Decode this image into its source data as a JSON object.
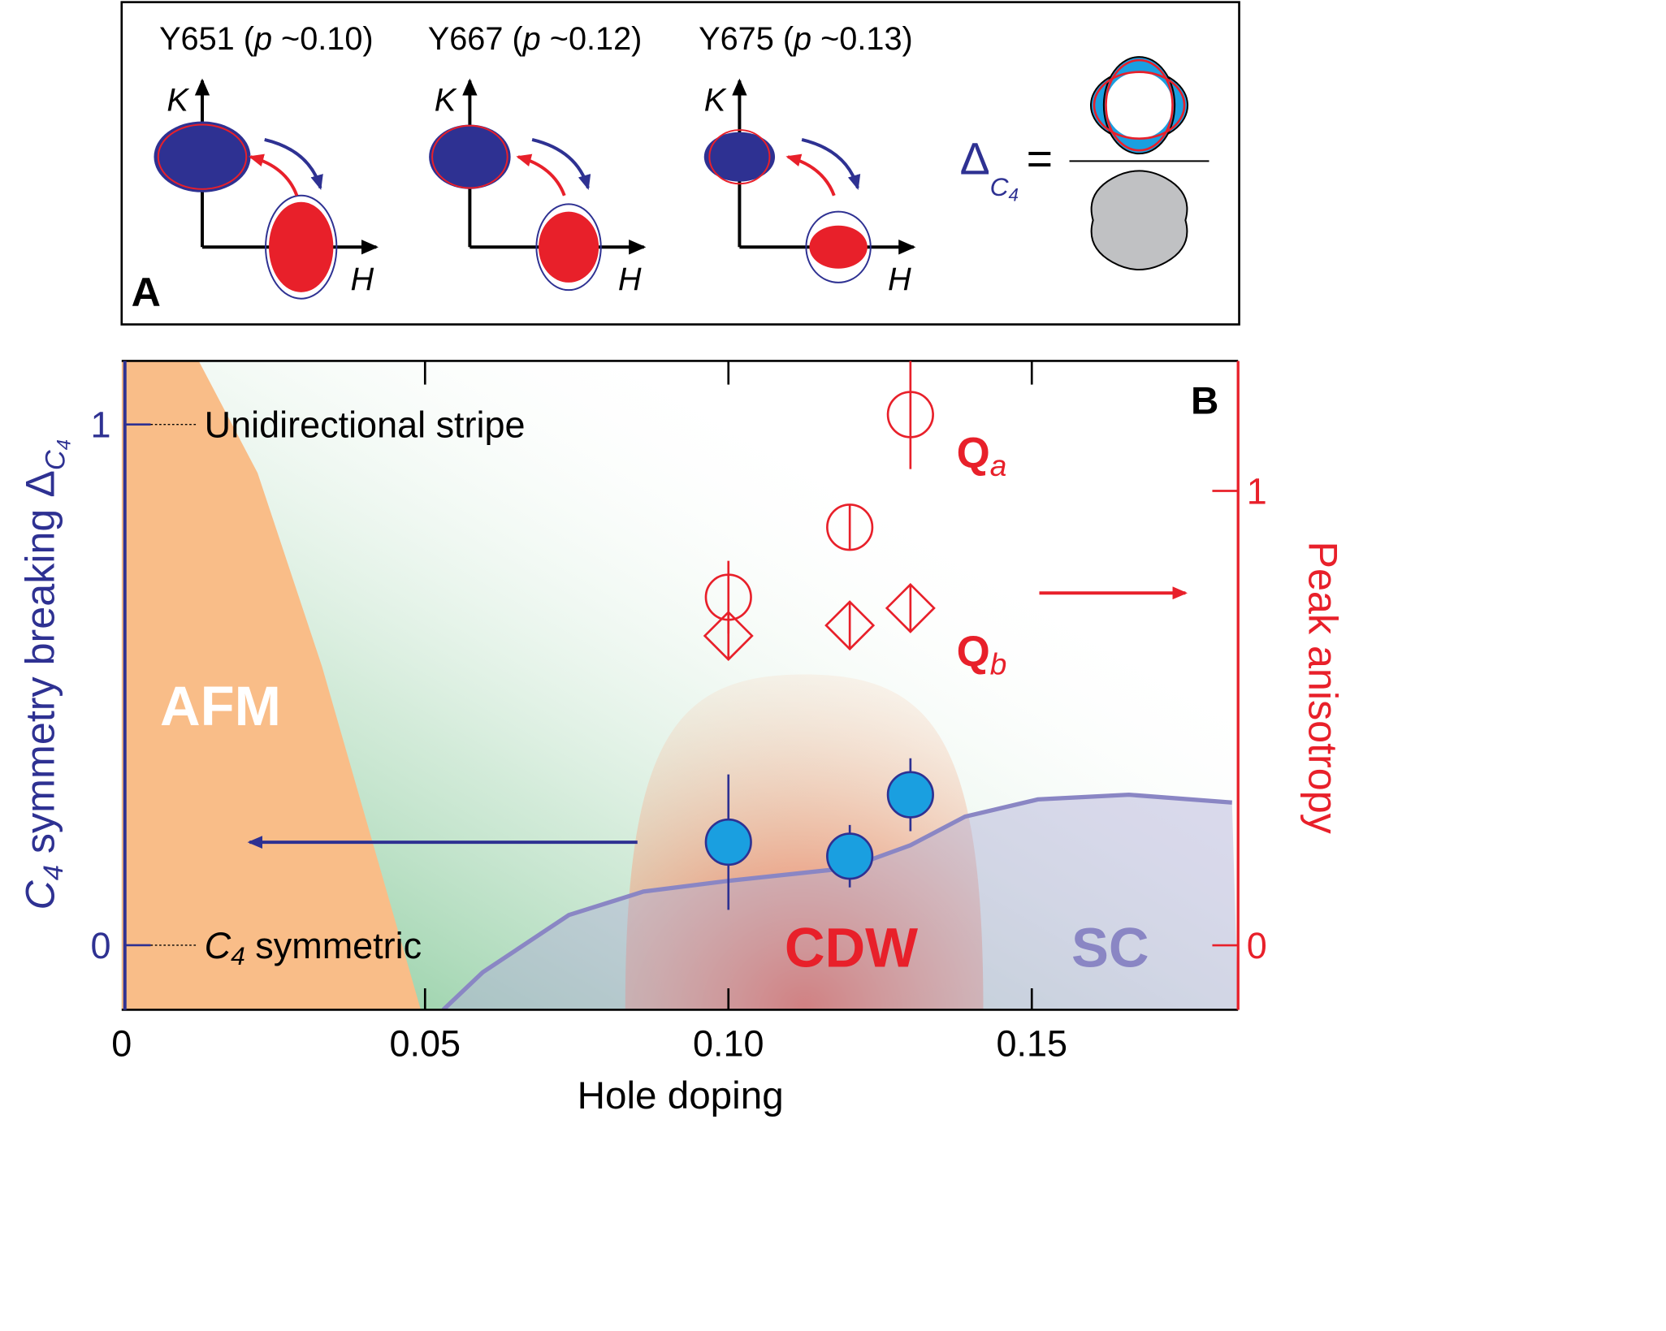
{
  "panel_a": {
    "label": "A",
    "samples": [
      {
        "title_parts": [
          "Y651 (",
          "p",
          " ~0.10)"
        ]
      },
      {
        "title_parts": [
          "Y667 (",
          "p",
          " ~0.12)"
        ]
      },
      {
        "title_parts": [
          "Y675 (",
          "p",
          " ~0.13)"
        ]
      }
    ],
    "k_label": "K",
    "h_label": "H",
    "formula": {
      "delta": "Δ",
      "sub_c": "C",
      "sub_4": "4",
      "equals": "="
    }
  },
  "chart_data": {
    "type": "scatter",
    "panel_label": "B",
    "xlabel": "Hole doping",
    "ylabel_parts": [
      "C",
      "4",
      " symmetry breaking Δ",
      "C",
      "4"
    ],
    "y2label": "Peak anisotropy",
    "xlim": [
      0,
      0.184
    ],
    "xticks": [
      0,
      0.05,
      {
        "value": 0.1,
        "label": "0.10"
      },
      0.15
    ],
    "ylim": [
      -0.124,
      1.122
    ],
    "yticks": [
      0,
      1
    ],
    "y2lim": [
      -0.142,
      1.286
    ],
    "y2ticks": [
      0,
      1
    ],
    "ytick_notes": [
      [
        "C",
        "4",
        " symmetric"
      ],
      [
        "Unidirectional stripe"
      ]
    ],
    "series": [
      {
        "color": "#1a9fe0",
        "marker": "circle",
        "x": [
          0.1,
          0.12,
          0.13
        ],
        "values": [
          0.198,
          0.171,
          0.289
        ],
        "errors": [
          0.13,
          0.06,
          0.07
        ]
      },
      {
        "axis": "y2",
        "color": "#e8202a",
        "marker": "open-circle",
        "label_parts": [
          "Q",
          "a"
        ],
        "x": [
          0.1,
          0.12,
          0.13
        ],
        "values": [
          0.766,
          0.92,
          1.168
        ],
        "errors": [
          0.08,
          0.05,
          0.12
        ]
      },
      {
        "axis": "y2",
        "color": "#e8202a",
        "marker": "open-diamond",
        "label_parts": [
          "Q",
          "b"
        ],
        "x": [
          0.1,
          0.12,
          0.13
        ],
        "values": [
          0.681,
          0.704,
          0.742
        ],
        "errors": [
          0.05,
          0.05,
          0.05
        ]
      }
    ],
    "regions": {
      "afm": {
        "label": "AFM",
        "color": "#f9bd88",
        "x": [
          0.0127,
          0.0224,
          0.033,
          0.0493
        ],
        "y": [
          1.122,
          0.907,
          0.536,
          -0.124
        ]
      },
      "cdw": {
        "label": "CDW",
        "color": "#e8202a",
        "xlim": [
          0.083,
          0.142
        ],
        "top": 0.52
      },
      "sc": {
        "label": "SC",
        "color": "#8a86c4",
        "x": [
          0.053,
          0.0595,
          0.0737,
          0.086,
          0.1002,
          0.1196,
          0.13,
          0.139,
          0.151,
          0.166,
          0.183
        ],
        "y": [
          -0.124,
          -0.052,
          0.058,
          0.103,
          0.124,
          0.148,
          0.192,
          0.247,
          0.28,
          0.289,
          0.274
        ]
      }
    }
  }
}
